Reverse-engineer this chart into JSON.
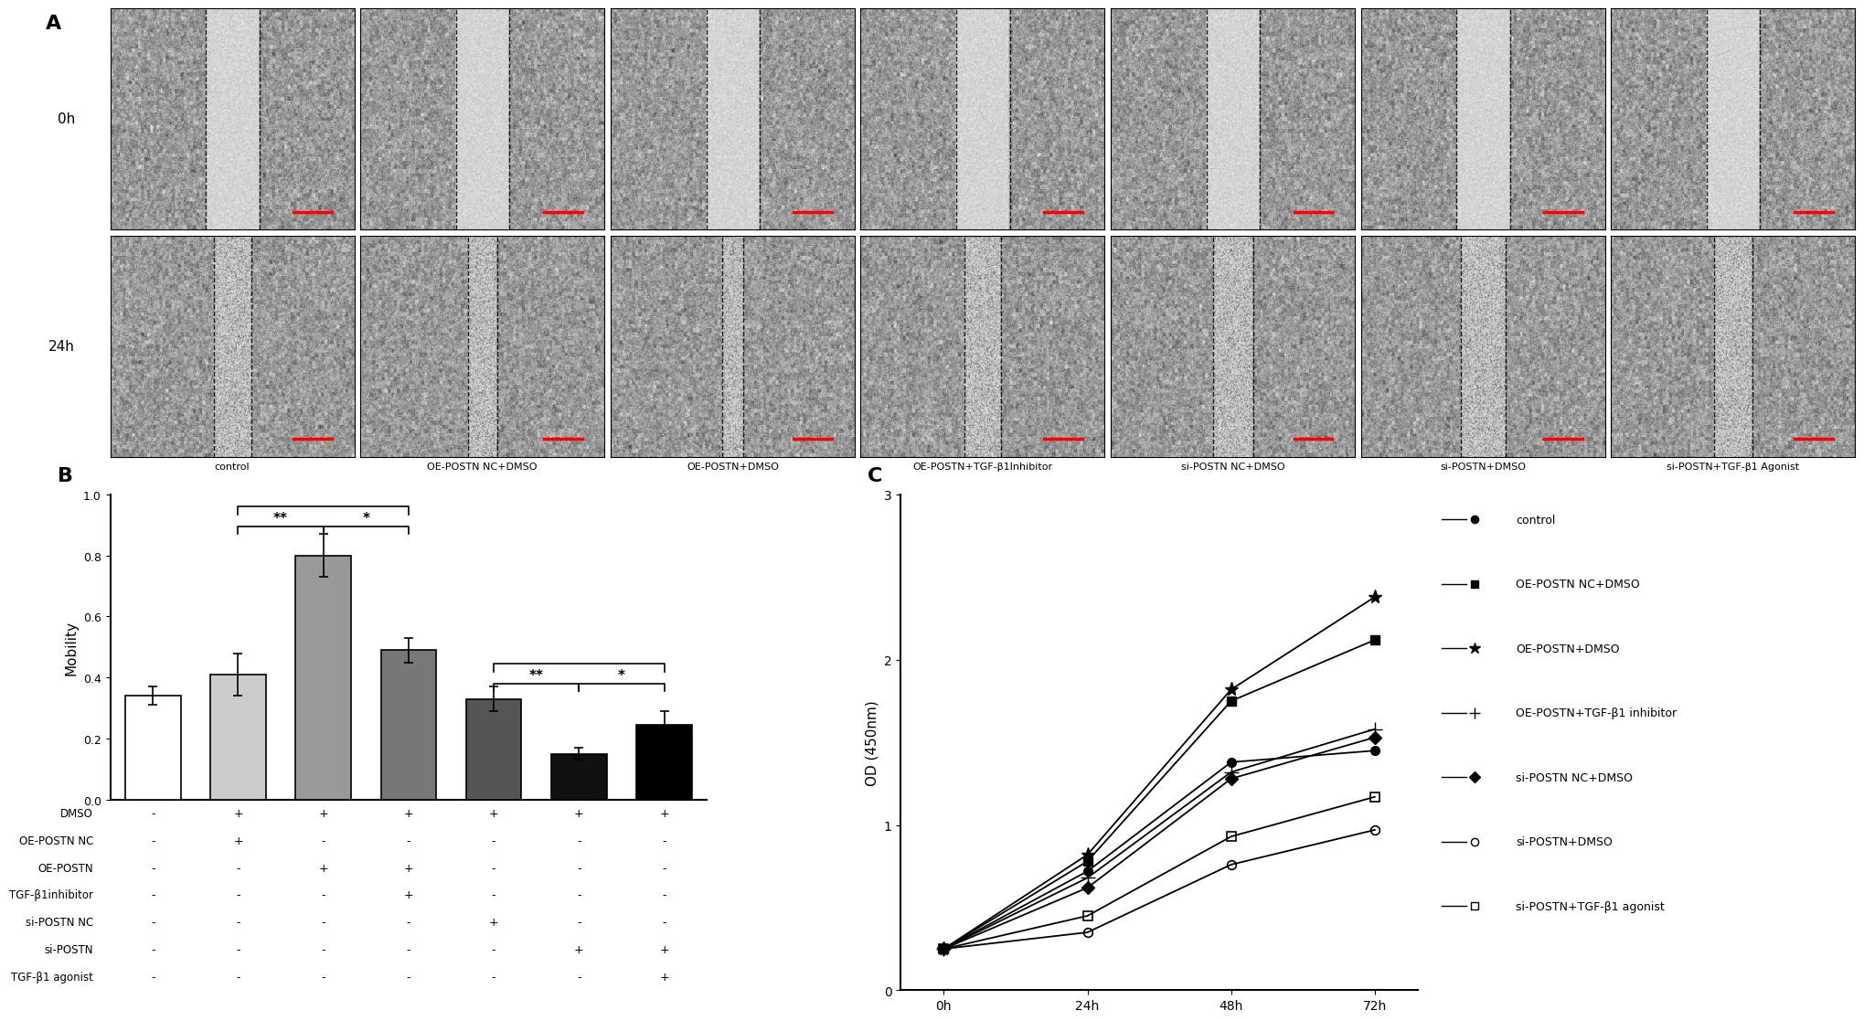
{
  "panel_A_label": "A",
  "panel_B_label": "B",
  "panel_C_label": "C",
  "image_labels": [
    "control",
    "OE-POSTN NC+DMSO",
    "OE-POSTN+DMSO",
    "OE-POSTN+TGF-β1Inhibitor",
    "si-POSTN NC+DMSO",
    "si-POSTN+DMSO",
    "si-POSTN+TGF-β1 Agonist"
  ],
  "row_labels": [
    "0h",
    "24h"
  ],
  "bar_values": [
    0.34,
    0.41,
    0.8,
    0.49,
    0.33,
    0.15,
    0.245
  ],
  "bar_errors": [
    0.03,
    0.07,
    0.07,
    0.04,
    0.04,
    0.02,
    0.045
  ],
  "bar_colors": [
    "#ffffff",
    "#cccccc",
    "#999999",
    "#777777",
    "#555555",
    "#111111",
    "#000000"
  ],
  "bar_edgecolors": [
    "#000000",
    "#000000",
    "#000000",
    "#000000",
    "#000000",
    "#000000",
    "#000000"
  ],
  "bar_ylabel": "Mobility",
  "bar_ylim": [
    0.0,
    1.0
  ],
  "bar_yticks": [
    0.0,
    0.2,
    0.4,
    0.6,
    0.8,
    1.0
  ],
  "table_rows": [
    "DMSO",
    "OE-POSTN NC",
    "OE-POSTN",
    "TGF-β1inhibitor",
    "si-POSTN NC",
    "si-POSTN",
    "TGF-β1 agonist"
  ],
  "table_data": [
    [
      "-",
      "+",
      "+",
      "+",
      "+",
      "+",
      "+"
    ],
    [
      "-",
      "+",
      "-",
      "-",
      "-",
      "-",
      "-"
    ],
    [
      "-",
      "-",
      "+",
      "+",
      "-",
      "-",
      "-"
    ],
    [
      "-",
      "-",
      "-",
      "+",
      "-",
      "-",
      "-"
    ],
    [
      "-",
      "-",
      "-",
      "-",
      "+",
      "-",
      "-"
    ],
    [
      "-",
      "-",
      "-",
      "-",
      "-",
      "+",
      "+"
    ],
    [
      "-",
      "-",
      "-",
      "-",
      "-",
      "-",
      "+"
    ]
  ],
  "line_xvals": [
    0,
    1,
    2,
    3
  ],
  "line_xlabels": [
    "0h",
    "24h",
    "48h",
    "72h"
  ],
  "line_data": {
    "control": [
      0.25,
      0.72,
      1.38,
      1.45
    ],
    "OE-POSTN NC+DMSO": [
      0.25,
      0.78,
      1.75,
      2.12
    ],
    "OE-POSTN+DMSO": [
      0.25,
      0.82,
      1.82,
      2.38
    ],
    "OE-POSTN+TGF-β1 inhibitor": [
      0.25,
      0.68,
      1.32,
      1.58
    ],
    "si-POSTN NC+DMSO": [
      0.25,
      0.62,
      1.28,
      1.53
    ],
    "si-POSTN+DMSO": [
      0.25,
      0.35,
      0.76,
      0.97
    ],
    "si-POSTN+TGF-β1 agonist": [
      0.25,
      0.45,
      0.93,
      1.17
    ]
  },
  "line_markers": [
    "o",
    "s",
    "*",
    "+",
    "D",
    "o",
    "s"
  ],
  "line_fillstyles": [
    "full",
    "full",
    "full",
    "full",
    "full",
    "none",
    "none"
  ],
  "line_markersize": [
    7,
    7,
    11,
    11,
    7,
    7,
    7
  ],
  "line_ylabel": "OD (450nm)",
  "line_ylim": [
    0,
    3
  ],
  "line_yticks": [
    0,
    1,
    2,
    3
  ],
  "legend_labels": [
    "control",
    "OE-POSTN NC+DMSO",
    "OE-POSTN+DMSO",
    "OE-POSTN+TGF-β1 inhibitor",
    "si-POSTN NC+DMSO",
    "si-POSTN+DMSO",
    "si-POSTN+TGF-β1 agonist"
  ]
}
